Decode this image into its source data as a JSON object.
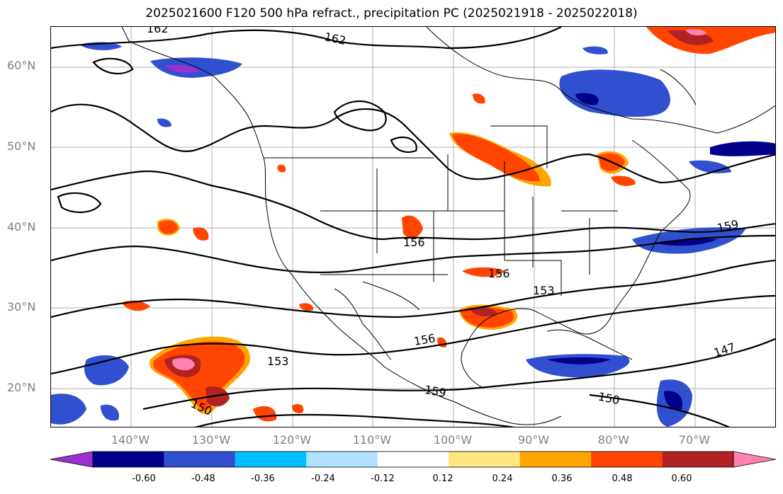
{
  "title": "2025021600 F120 500 hPa refract., precipitation PC (2025021918 - 2025022018)",
  "lat_labels": [
    "60°N",
    "50°N",
    "40°N",
    "30°N",
    "20°N"
  ],
  "lon_labels": [
    "140°W",
    "130°W",
    "120°W",
    "110°W",
    "100°W",
    "90°W",
    "80°W",
    "70°W"
  ],
  "contour_labels": [
    "162",
    "162",
    "159",
    "156",
    "156",
    "153",
    "156",
    "153",
    "159",
    "150",
    "150",
    "147"
  ],
  "colorbar": {
    "ticks": [
      "-0.60",
      "-0.48",
      "-0.36",
      "-0.24",
      "-0.12",
      "0.12",
      "0.24",
      "0.36",
      "0.48",
      "0.60"
    ],
    "colors": [
      "#9b30d0",
      "#00008b",
      "#3050d0",
      "#00bfff",
      "#b0e2ff",
      "#ffffff",
      "#ffe680",
      "#ffa500",
      "#ff4500",
      "#b22222",
      "#ff82b0"
    ]
  }
}
